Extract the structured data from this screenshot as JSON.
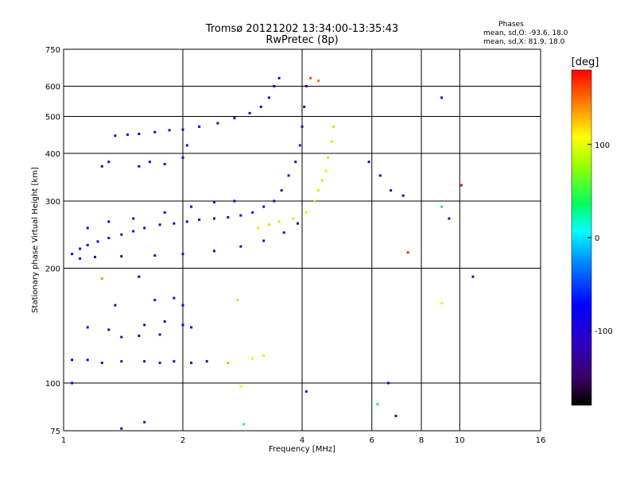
{
  "chart_data": {
    "type": "scatter",
    "title": "Tromsø 20121202 13:34:00-13:35:43",
    "subtitle": "RwPretec (8p)",
    "xlabel": "Frequency [MHz]",
    "ylabel": "Stationary phase Virtual Height [km]",
    "x_scale": "log",
    "y_scale": "log",
    "xlim": [
      1,
      16
    ],
    "ylim": [
      75,
      750
    ],
    "x_ticks": [
      1,
      2,
      4,
      6,
      8,
      10,
      16
    ],
    "y_ticks": [
      75,
      100,
      200,
      300,
      400,
      500,
      600,
      750
    ],
    "grid": true,
    "phase_info": {
      "heading": "Phases",
      "line_o": "mean, sd,O: -93.6, 18.0",
      "line_x": "mean, sd,X: 81.9, 18.0"
    },
    "colorbar": {
      "label": "[deg]",
      "range": [
        -180,
        180
      ],
      "ticks": [
        100,
        0,
        -100
      ]
    },
    "series": [
      {
        "name": "",
        "color_scale": "phase",
        "points": [
          {
            "f": 1.05,
            "h": 218,
            "p": -95
          },
          {
            "f": 1.1,
            "h": 225,
            "p": -90
          },
          {
            "f": 1.15,
            "h": 230,
            "p": -85
          },
          {
            "f": 1.22,
            "h": 235,
            "p": -92
          },
          {
            "f": 1.3,
            "h": 240,
            "p": -100
          },
          {
            "f": 1.4,
            "h": 245,
            "p": -95
          },
          {
            "f": 1.5,
            "h": 250,
            "p": -88
          },
          {
            "f": 1.6,
            "h": 255,
            "p": -92
          },
          {
            "f": 1.75,
            "h": 260,
            "p": -96
          },
          {
            "f": 1.9,
            "h": 262,
            "p": -90
          },
          {
            "f": 2.05,
            "h": 265,
            "p": -88
          },
          {
            "f": 2.2,
            "h": 268,
            "p": -94
          },
          {
            "f": 2.4,
            "h": 270,
            "p": -98
          },
          {
            "f": 2.6,
            "h": 272,
            "p": -95
          },
          {
            "f": 2.8,
            "h": 275,
            "p": -100
          },
          {
            "f": 3.0,
            "h": 280,
            "p": -110
          },
          {
            "f": 3.2,
            "h": 290,
            "p": -112
          },
          {
            "f": 3.4,
            "h": 300,
            "p": -108
          },
          {
            "f": 3.55,
            "h": 320,
            "p": -115
          },
          {
            "f": 3.7,
            "h": 350,
            "p": -112
          },
          {
            "f": 3.85,
            "h": 380,
            "p": -118
          },
          {
            "f": 3.95,
            "h": 420,
            "p": -115
          },
          {
            "f": 4.0,
            "h": 470,
            "p": -110
          },
          {
            "f": 4.05,
            "h": 530,
            "p": -108
          },
          {
            "f": 4.1,
            "h": 600,
            "p": -112
          },
          {
            "f": 1.1,
            "h": 212,
            "p": -100
          },
          {
            "f": 1.2,
            "h": 214,
            "p": -102
          },
          {
            "f": 1.4,
            "h": 215,
            "p": -100
          },
          {
            "f": 1.7,
            "h": 216,
            "p": -103
          },
          {
            "f": 2.0,
            "h": 218,
            "p": -100
          },
          {
            "f": 2.4,
            "h": 222,
            "p": -104
          },
          {
            "f": 2.8,
            "h": 228,
            "p": -100
          },
          {
            "f": 3.2,
            "h": 236,
            "p": -102
          },
          {
            "f": 3.6,
            "h": 248,
            "p": -104
          },
          {
            "f": 3.9,
            "h": 262,
            "p": -100
          },
          {
            "f": 1.15,
            "h": 255,
            "p": -70
          },
          {
            "f": 1.3,
            "h": 265,
            "p": -75
          },
          {
            "f": 1.5,
            "h": 270,
            "p": -80
          },
          {
            "f": 1.8,
            "h": 280,
            "p": -70
          },
          {
            "f": 2.1,
            "h": 290,
            "p": -72
          },
          {
            "f": 2.4,
            "h": 298,
            "p": -75
          },
          {
            "f": 2.7,
            "h": 300,
            "p": -78
          },
          {
            "f": 3.1,
            "h": 255,
            "p": 118
          },
          {
            "f": 3.3,
            "h": 260,
            "p": 122
          },
          {
            "f": 3.5,
            "h": 265,
            "p": 120
          },
          {
            "f": 3.8,
            "h": 270,
            "p": 118
          },
          {
            "f": 4.1,
            "h": 280,
            "p": 115
          },
          {
            "f": 4.3,
            "h": 300,
            "p": 118
          },
          {
            "f": 4.5,
            "h": 340,
            "p": 120
          },
          {
            "f": 4.65,
            "h": 390,
            "p": 118
          },
          {
            "f": 4.75,
            "h": 430,
            "p": 120
          },
          {
            "f": 4.8,
            "h": 470,
            "p": 122
          },
          {
            "f": 4.6,
            "h": 360,
            "p": 118
          },
          {
            "f": 4.4,
            "h": 320,
            "p": 116
          },
          {
            "f": 1.45,
            "h": 448,
            "p": -95
          },
          {
            "f": 1.55,
            "h": 450,
            "p": -92
          },
          {
            "f": 1.7,
            "h": 455,
            "p": -98
          },
          {
            "f": 1.85,
            "h": 460,
            "p": -90
          },
          {
            "f": 2.0,
            "h": 462,
            "p": -94
          },
          {
            "f": 2.2,
            "h": 470,
            "p": -88
          },
          {
            "f": 2.45,
            "h": 480,
            "p": -92
          },
          {
            "f": 2.7,
            "h": 495,
            "p": -95
          },
          {
            "f": 2.95,
            "h": 510,
            "p": -98
          },
          {
            "f": 3.15,
            "h": 530,
            "p": -100
          },
          {
            "f": 3.3,
            "h": 560,
            "p": -105
          },
          {
            "f": 3.4,
            "h": 600,
            "p": -110
          },
          {
            "f": 3.5,
            "h": 630,
            "p": -112
          },
          {
            "f": 1.35,
            "h": 445,
            "p": -108
          },
          {
            "f": 1.25,
            "h": 370,
            "p": -112
          },
          {
            "f": 1.3,
            "h": 380,
            "p": -110
          },
          {
            "f": 1.55,
            "h": 370,
            "p": -105
          },
          {
            "f": 1.65,
            "h": 380,
            "p": -102
          },
          {
            "f": 1.8,
            "h": 375,
            "p": -104
          },
          {
            "f": 2.0,
            "h": 390,
            "p": -106
          },
          {
            "f": 2.05,
            "h": 420,
            "p": -110
          },
          {
            "f": 1.05,
            "h": 115,
            "p": -80
          },
          {
            "f": 1.15,
            "h": 115,
            "p": -85
          },
          {
            "f": 1.25,
            "h": 113,
            "p": -90
          },
          {
            "f": 1.4,
            "h": 114,
            "p": -92
          },
          {
            "f": 1.6,
            "h": 114,
            "p": -95
          },
          {
            "f": 1.75,
            "h": 113,
            "p": -98
          },
          {
            "f": 1.9,
            "h": 114,
            "p": -96
          },
          {
            "f": 2.1,
            "h": 113,
            "p": -94
          },
          {
            "f": 2.3,
            "h": 114,
            "p": -92
          },
          {
            "f": 2.6,
            "h": 113,
            "p": 130
          },
          {
            "f": 3.0,
            "h": 116,
            "p": 115
          },
          {
            "f": 3.2,
            "h": 118,
            "p": 118
          },
          {
            "f": 1.15,
            "h": 140,
            "p": -85
          },
          {
            "f": 1.3,
            "h": 138,
            "p": -90
          },
          {
            "f": 1.4,
            "h": 132,
            "p": -112
          },
          {
            "f": 1.55,
            "h": 133,
            "p": -115
          },
          {
            "f": 1.75,
            "h": 134,
            "p": -110
          },
          {
            "f": 1.6,
            "h": 142,
            "p": -100
          },
          {
            "f": 1.8,
            "h": 145,
            "p": -95
          },
          {
            "f": 2.0,
            "h": 142,
            "p": -85
          },
          {
            "f": 2.1,
            "h": 140,
            "p": -80
          },
          {
            "f": 1.7,
            "h": 165,
            "p": -95
          },
          {
            "f": 1.9,
            "h": 167,
            "p": -90
          },
          {
            "f": 2.0,
            "h": 160,
            "p": -88
          },
          {
            "f": 1.35,
            "h": 160,
            "p": -118
          },
          {
            "f": 1.25,
            "h": 188,
            "p": 140
          },
          {
            "f": 1.55,
            "h": 190,
            "p": -100
          },
          {
            "f": 2.75,
            "h": 165,
            "p": 80
          },
          {
            "f": 4.2,
            "h": 630,
            "p": 160
          },
          {
            "f": 4.4,
            "h": 620,
            "p": 150
          },
          {
            "f": 5.9,
            "h": 380,
            "p": -120
          },
          {
            "f": 6.3,
            "h": 350,
            "p": -110
          },
          {
            "f": 6.7,
            "h": 320,
            "p": -120
          },
          {
            "f": 7.2,
            "h": 310,
            "p": -120
          },
          {
            "f": 7.4,
            "h": 220,
            "p": 170
          },
          {
            "f": 9.0,
            "h": 560,
            "p": -95
          },
          {
            "f": 9.0,
            "h": 290,
            "p": 30
          },
          {
            "f": 9.4,
            "h": 270,
            "p": -110
          },
          {
            "f": 10.1,
            "h": 330,
            "p": 175
          },
          {
            "f": 10.8,
            "h": 190,
            "p": -110
          },
          {
            "f": 9.0,
            "h": 162,
            "p": 100
          },
          {
            "f": 6.6,
            "h": 100,
            "p": -100
          },
          {
            "f": 6.9,
            "h": 82,
            "p": -110
          },
          {
            "f": 6.2,
            "h": 88,
            "p": 30
          },
          {
            "f": 4.1,
            "h": 95,
            "p": -100
          },
          {
            "f": 1.6,
            "h": 79,
            "p": -120
          },
          {
            "f": 1.4,
            "h": 76,
            "p": -110
          },
          {
            "f": 1.05,
            "h": 100,
            "p": -100
          },
          {
            "f": 2.85,
            "h": 78,
            "p": 20
          },
          {
            "f": 2.8,
            "h": 98,
            "p": 100
          }
        ]
      }
    ]
  }
}
